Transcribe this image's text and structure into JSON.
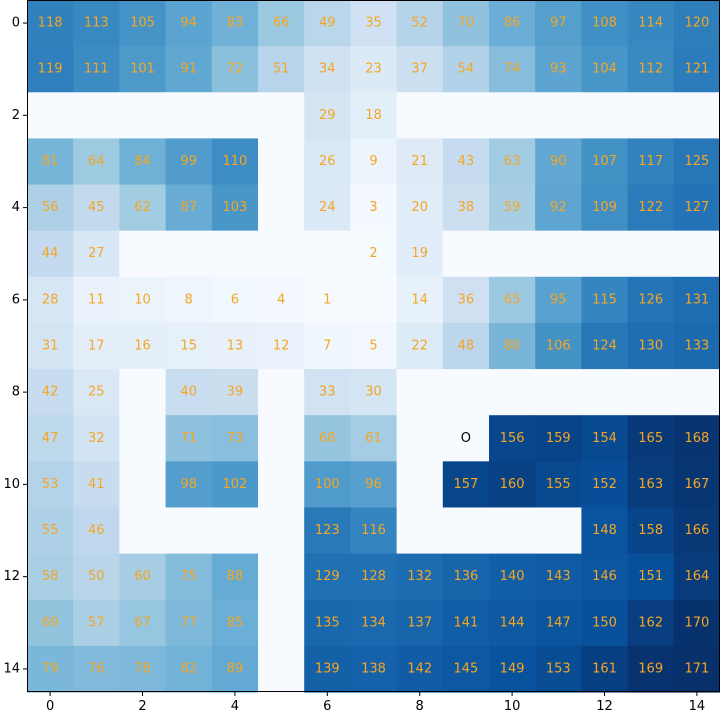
{
  "chart_data": {
    "type": "heatmap",
    "title": "",
    "xlabel": "",
    "ylabel": "",
    "xlim": [
      -0.5,
      14.5
    ],
    "ylim": [
      14.5,
      -0.5
    ],
    "x_ticks": [
      0,
      2,
      4,
      6,
      8,
      10,
      12,
      14
    ],
    "y_ticks": [
      0,
      2,
      4,
      6,
      8,
      10,
      12,
      14
    ],
    "colormap": "Blues",
    "value_range": [
      0,
      171
    ],
    "grid": false,
    "label_color": "#f5a623",
    "origin_label_color": "#000000",
    "empty_color": "#f7fbff",
    "values": [
      [
        118,
        113,
        105,
        94,
        83,
        66,
        49,
        35,
        52,
        70,
        86,
        97,
        108,
        114,
        120
      ],
      [
        119,
        111,
        101,
        91,
        72,
        51,
        34,
        23,
        37,
        54,
        74,
        93,
        104,
        112,
        121
      ],
      [
        null,
        null,
        null,
        null,
        null,
        null,
        29,
        18,
        null,
        null,
        null,
        null,
        null,
        null,
        null
      ],
      [
        81,
        64,
        84,
        99,
        110,
        null,
        26,
        9,
        21,
        43,
        63,
        90,
        107,
        117,
        125
      ],
      [
        56,
        45,
        62,
        87,
        103,
        null,
        24,
        3,
        20,
        38,
        59,
        92,
        109,
        122,
        127
      ],
      [
        44,
        27,
        null,
        null,
        null,
        null,
        null,
        2,
        19,
        null,
        null,
        null,
        null,
        null,
        null
      ],
      [
        28,
        11,
        10,
        8,
        6,
        4,
        1,
        null,
        14,
        36,
        65,
        95,
        115,
        126,
        131
      ],
      [
        31,
        17,
        16,
        15,
        13,
        12,
        7,
        5,
        22,
        48,
        80,
        106,
        124,
        130,
        133
      ],
      [
        42,
        25,
        null,
        40,
        39,
        null,
        33,
        30,
        null,
        null,
        null,
        null,
        null,
        null,
        null
      ],
      [
        47,
        32,
        null,
        71,
        73,
        null,
        68,
        61,
        null,
        "O",
        156,
        159,
        154,
        165,
        168
      ],
      [
        53,
        41,
        null,
        98,
        102,
        null,
        100,
        96,
        null,
        157,
        160,
        155,
        152,
        163,
        167
      ],
      [
        55,
        46,
        null,
        null,
        null,
        null,
        123,
        116,
        null,
        null,
        null,
        null,
        148,
        158,
        166
      ],
      [
        58,
        50,
        60,
        75,
        88,
        null,
        129,
        128,
        132,
        136,
        140,
        143,
        146,
        151,
        164
      ],
      [
        69,
        57,
        67,
        77,
        85,
        null,
        135,
        134,
        137,
        141,
        144,
        147,
        150,
        162,
        170
      ],
      [
        79,
        76,
        78,
        82,
        89,
        null,
        139,
        138,
        142,
        145,
        149,
        153,
        161,
        169,
        171
      ]
    ]
  }
}
